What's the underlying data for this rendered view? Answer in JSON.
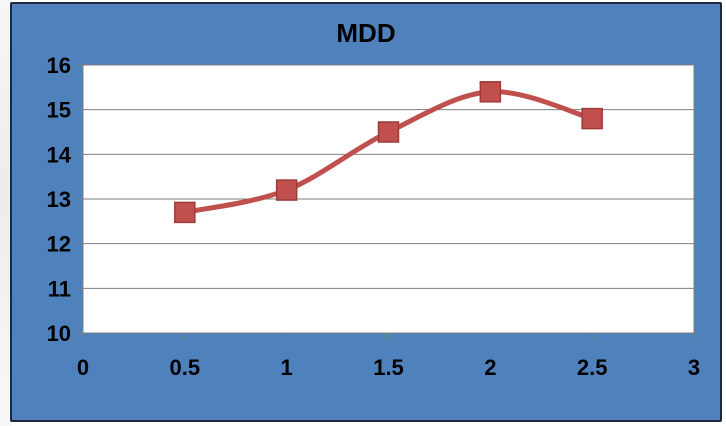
{
  "chart_data": {
    "type": "line",
    "title": "MDD",
    "xlabel": "",
    "ylabel": "",
    "x": [
      0.5,
      1,
      1.5,
      2,
      2.5
    ],
    "series": [
      {
        "values": [
          12.7,
          13.2,
          14.5,
          15.4,
          14.8
        ],
        "color": "#c0504d",
        "marker": "square",
        "smooth": true
      }
    ],
    "xlim": [
      0,
      3
    ],
    "ylim": [
      10,
      16
    ],
    "xticks": [
      "0",
      "0.5",
      "1",
      "1.5",
      "2",
      "2.5",
      "3"
    ],
    "yticks": [
      "10",
      "11",
      "12",
      "13",
      "14",
      "15",
      "16"
    ],
    "grid": "horizontal",
    "legend": "none",
    "colors": {
      "frame": "#4f81bd",
      "plot_area": "#ffffff",
      "gridline": "#7f7f7f",
      "series": "#c0504d"
    }
  }
}
